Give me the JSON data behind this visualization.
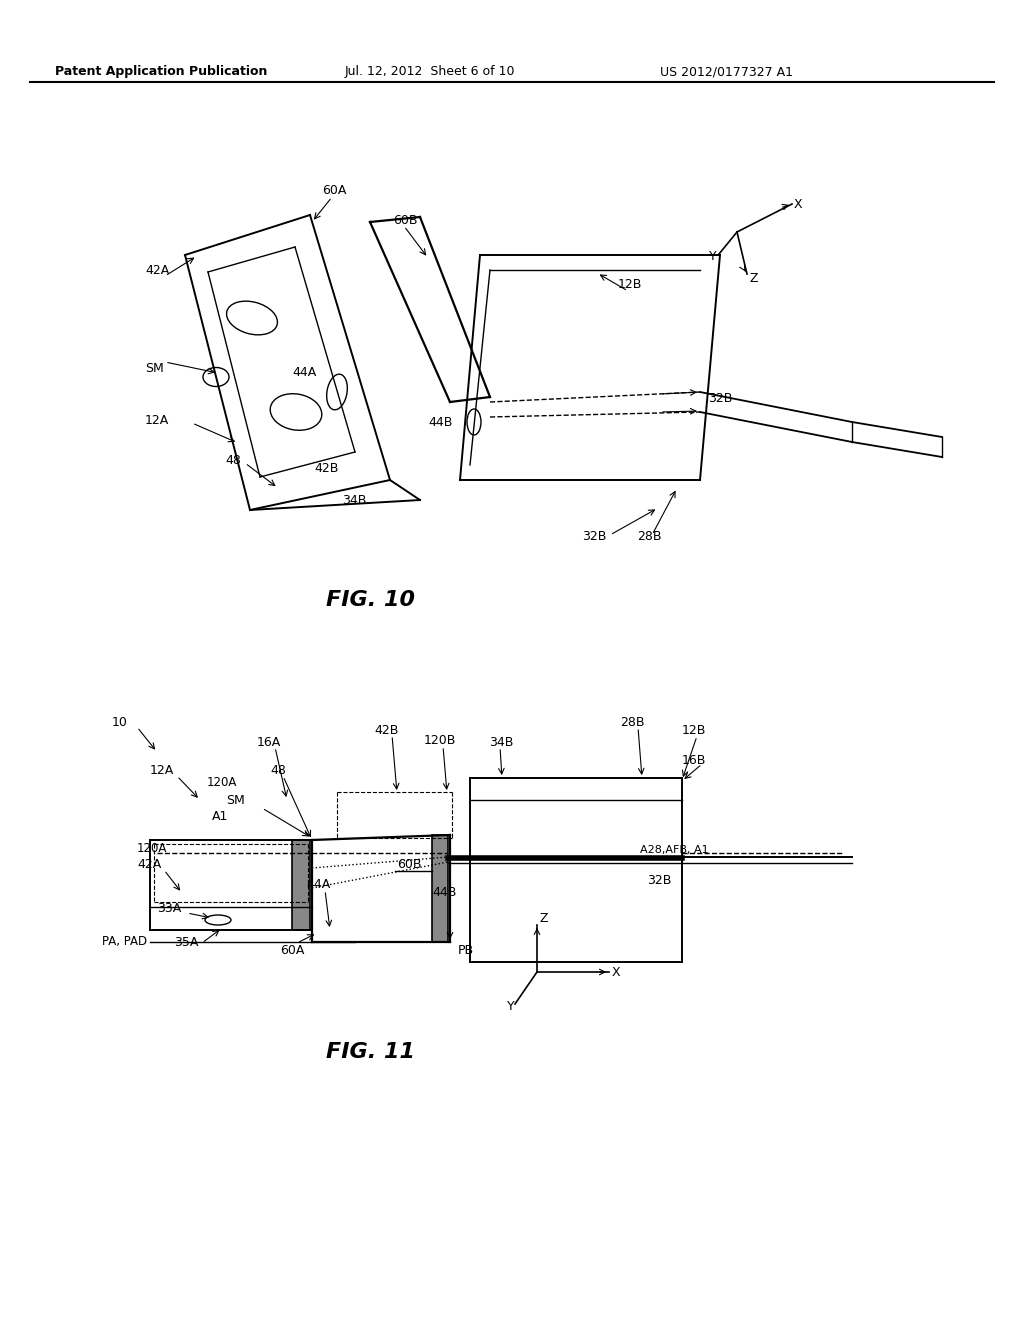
{
  "header_left": "Patent Application Publication",
  "header_mid": "Jul. 12, 2012  Sheet 6 of 10",
  "header_right": "US 2012/0177327 A1",
  "fig10_label": "FIG. 10",
  "fig11_label": "FIG. 11",
  "bg_color": "#ffffff",
  "line_color": "#000000"
}
